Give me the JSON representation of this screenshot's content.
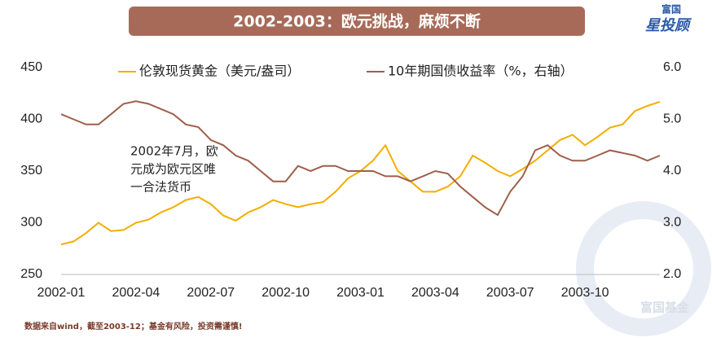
{
  "chart_data": {
    "type": "line",
    "title": "2002-2003：欧元挑战，麻烦不断",
    "brand": [
      "富国",
      "星投顾"
    ],
    "annotation": [
      "2002年7月，欧",
      "元成为欧元区唯",
      "一合法货币"
    ],
    "source": "数据来自wind，截至2003-12；基金有风险，投资需谨慎!",
    "watermark": "富国基金",
    "categories": [
      "2002-01",
      null,
      null,
      null,
      null,
      null,
      "2002-04",
      null,
      null,
      null,
      null,
      null,
      "2002-07",
      null,
      null,
      null,
      null,
      null,
      "2002-10",
      null,
      null,
      null,
      null,
      null,
      "2003-01",
      null,
      null,
      null,
      null,
      null,
      "2003-04",
      null,
      null,
      null,
      null,
      null,
      "2003-07",
      null,
      null,
      null,
      null,
      null,
      "2003-10",
      null,
      null,
      null,
      null,
      null,
      null
    ],
    "series": [
      {
        "name": "伦敦现货黄金（美元/盎司）",
        "color": "#f2ae00",
        "values": [
          279,
          282,
          290,
          300,
          292,
          293,
          300,
          303,
          310,
          315,
          322,
          325,
          318,
          307,
          302,
          310,
          315,
          322,
          318,
          315,
          318,
          320,
          330,
          343,
          350,
          360,
          375,
          350,
          340,
          330,
          330,
          335,
          345,
          365,
          358,
          350,
          345,
          352,
          360,
          370,
          380,
          385,
          375,
          383,
          392,
          395,
          408,
          413,
          417
        ]
      },
      {
        "name": "10年期国债收益率（%，右轴）",
        "color": "#9e5f4a",
        "axis": "y2",
        "values": [
          5.1,
          5.0,
          4.9,
          4.9,
          5.1,
          5.3,
          5.35,
          5.3,
          5.2,
          5.1,
          4.9,
          4.85,
          4.6,
          4.5,
          4.3,
          4.2,
          4.0,
          3.8,
          3.8,
          4.1,
          4.0,
          4.1,
          4.1,
          4.0,
          4.0,
          4.0,
          3.9,
          3.9,
          3.8,
          3.9,
          4.0,
          3.95,
          3.7,
          3.5,
          3.3,
          3.15,
          3.6,
          3.9,
          4.4,
          4.5,
          4.3,
          4.2,
          4.2,
          4.3,
          4.4,
          4.35,
          4.3,
          4.2,
          4.3
        ]
      }
    ],
    "ylim": [
      250,
      450
    ],
    "yticks": [
      250,
      300,
      350,
      400,
      450
    ],
    "y2lim": [
      2.0,
      6.0
    ],
    "y2ticks": [
      {
        "value": 2.0,
        "label": "2.0"
      },
      {
        "value": 3.0,
        "label": "3.0"
      },
      {
        "value": 4.0,
        "label": "4.0"
      },
      {
        "value": 5.0,
        "label": "5.0"
      },
      {
        "value": 6.0,
        "label": "6.0"
      }
    ]
  }
}
